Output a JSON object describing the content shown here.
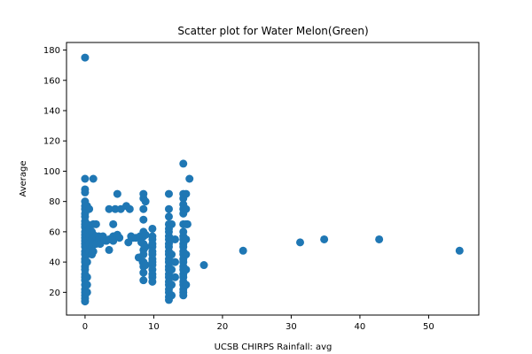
{
  "chart_data": {
    "type": "scatter",
    "title": "Scatter plot for Water Melon(Green)",
    "xlabel": "UCSB CHIRPS Rainfall: avg",
    "ylabel": "Average",
    "xlim": [
      -2.7,
      57.3
    ],
    "ylim": [
      5,
      185
    ],
    "xticks": [
      0,
      10,
      20,
      30,
      40,
      50
    ],
    "yticks": [
      20,
      40,
      60,
      80,
      100,
      120,
      140,
      160,
      180
    ],
    "grid": false,
    "legend": "none",
    "marker_color": "#1f77b4",
    "series": [
      {
        "points": [
          [
            0,
            175
          ],
          [
            0,
            95
          ],
          [
            0,
            88
          ],
          [
            0,
            86
          ],
          [
            0,
            80
          ],
          [
            0,
            77
          ],
          [
            0,
            75
          ],
          [
            0,
            72
          ],
          [
            0,
            70
          ],
          [
            0,
            67
          ],
          [
            0,
            65
          ],
          [
            0,
            63
          ],
          [
            0,
            60
          ],
          [
            0,
            58
          ],
          [
            0,
            56
          ],
          [
            0,
            54
          ],
          [
            0,
            52
          ],
          [
            0,
            50
          ],
          [
            0,
            47
          ],
          [
            0,
            45
          ],
          [
            0,
            42
          ],
          [
            0,
            40
          ],
          [
            0,
            37
          ],
          [
            0,
            35
          ],
          [
            0,
            32
          ],
          [
            0,
            30
          ],
          [
            0,
            28
          ],
          [
            0,
            25
          ],
          [
            0,
            22
          ],
          [
            0,
            20
          ],
          [
            0,
            18
          ],
          [
            0,
            16
          ],
          [
            0,
            14
          ],
          [
            0.3,
            77
          ],
          [
            0.3,
            65
          ],
          [
            0.3,
            60
          ],
          [
            0.3,
            55
          ],
          [
            0.3,
            50
          ],
          [
            0.3,
            45
          ],
          [
            0.3,
            40
          ],
          [
            0.3,
            30
          ],
          [
            0.3,
            25
          ],
          [
            0.3,
            20
          ],
          [
            0.6,
            75
          ],
          [
            0.6,
            62
          ],
          [
            0.6,
            57
          ],
          [
            0.6,
            52
          ],
          [
            0.6,
            47
          ],
          [
            1.2,
            95
          ],
          [
            1.0,
            60
          ],
          [
            1.0,
            55
          ],
          [
            1.0,
            50
          ],
          [
            1.0,
            45
          ],
          [
            1.2,
            65
          ],
          [
            1.2,
            58
          ],
          [
            1.2,
            52
          ],
          [
            1.2,
            47
          ],
          [
            1.6,
            65
          ],
          [
            1.6,
            57
          ],
          [
            1.6,
            52
          ],
          [
            2.0,
            57
          ],
          [
            2.0,
            55
          ],
          [
            2.2,
            52
          ],
          [
            2.6,
            57
          ],
          [
            2.8,
            55
          ],
          [
            3.1,
            54
          ],
          [
            3.5,
            75
          ],
          [
            3.5,
            55
          ],
          [
            3.5,
            48
          ],
          [
            4.1,
            65
          ],
          [
            4.1,
            57
          ],
          [
            4.1,
            54
          ],
          [
            4.4,
            75
          ],
          [
            4.7,
            85
          ],
          [
            4.7,
            58
          ],
          [
            5.0,
            56
          ],
          [
            5.2,
            75
          ],
          [
            6.0,
            77
          ],
          [
            6.3,
            53
          ],
          [
            6.5,
            75
          ],
          [
            6.7,
            57
          ],
          [
            7.0,
            56
          ],
          [
            7.4,
            56
          ],
          [
            7.8,
            43
          ],
          [
            8.0,
            57
          ],
          [
            8.2,
            53
          ],
          [
            8.4,
            40
          ],
          [
            8.5,
            85
          ],
          [
            8.5,
            82
          ],
          [
            8.5,
            75
          ],
          [
            8.5,
            68
          ],
          [
            8.5,
            60
          ],
          [
            8.5,
            57
          ],
          [
            8.5,
            52
          ],
          [
            8.5,
            48
          ],
          [
            8.5,
            45
          ],
          [
            8.5,
            40
          ],
          [
            8.5,
            37
          ],
          [
            8.5,
            33
          ],
          [
            8.5,
            28
          ],
          [
            8.8,
            80
          ],
          [
            8.8,
            58
          ],
          [
            8.8,
            50
          ],
          [
            8.8,
            38
          ],
          [
            9.8,
            62
          ],
          [
            9.8,
            57
          ],
          [
            9.8,
            55
          ],
          [
            9.8,
            52
          ],
          [
            9.8,
            50
          ],
          [
            9.8,
            47
          ],
          [
            9.8,
            45
          ],
          [
            9.8,
            42
          ],
          [
            9.8,
            40
          ],
          [
            9.8,
            38
          ],
          [
            9.8,
            35
          ],
          [
            9.8,
            32
          ],
          [
            9.8,
            30
          ],
          [
            9.8,
            27
          ],
          [
            12.2,
            85
          ],
          [
            12.2,
            75
          ],
          [
            12.2,
            70
          ],
          [
            12.2,
            65
          ],
          [
            12.2,
            62
          ],
          [
            12.2,
            60
          ],
          [
            12.2,
            57
          ],
          [
            12.2,
            55
          ],
          [
            12.2,
            52
          ],
          [
            12.2,
            50
          ],
          [
            12.2,
            47
          ],
          [
            12.2,
            45
          ],
          [
            12.2,
            42
          ],
          [
            12.2,
            40
          ],
          [
            12.2,
            37
          ],
          [
            12.2,
            35
          ],
          [
            12.2,
            32
          ],
          [
            12.2,
            30
          ],
          [
            12.2,
            27
          ],
          [
            12.2,
            25
          ],
          [
            12.2,
            22
          ],
          [
            12.2,
            20
          ],
          [
            12.2,
            17
          ],
          [
            12.2,
            15
          ],
          [
            12.6,
            65
          ],
          [
            12.6,
            55
          ],
          [
            12.6,
            45
          ],
          [
            12.6,
            35
          ],
          [
            12.6,
            25
          ],
          [
            12.6,
            18
          ],
          [
            13.1,
            55
          ],
          [
            13.1,
            40
          ],
          [
            13.1,
            30
          ],
          [
            14.3,
            105
          ],
          [
            14.3,
            85
          ],
          [
            14.3,
            82
          ],
          [
            14.3,
            78
          ],
          [
            14.3,
            75
          ],
          [
            14.3,
            72
          ],
          [
            14.3,
            65
          ],
          [
            14.3,
            60
          ],
          [
            14.3,
            57
          ],
          [
            14.3,
            55
          ],
          [
            14.3,
            52
          ],
          [
            14.3,
            50
          ],
          [
            14.3,
            47
          ],
          [
            14.3,
            45
          ],
          [
            14.3,
            42
          ],
          [
            14.3,
            40
          ],
          [
            14.3,
            37
          ],
          [
            14.3,
            35
          ],
          [
            14.3,
            32
          ],
          [
            14.3,
            30
          ],
          [
            14.3,
            27
          ],
          [
            14.3,
            25
          ],
          [
            14.3,
            22
          ],
          [
            14.3,
            20
          ],
          [
            14.3,
            18
          ],
          [
            14.7,
            85
          ],
          [
            14.7,
            75
          ],
          [
            14.7,
            65
          ],
          [
            14.7,
            55
          ],
          [
            14.7,
            45
          ],
          [
            14.7,
            35
          ],
          [
            14.7,
            25
          ],
          [
            15.2,
            95
          ],
          [
            14.9,
            65
          ],
          [
            17.3,
            38
          ],
          [
            23.0,
            47.5
          ],
          [
            31.3,
            53
          ],
          [
            34.8,
            55
          ],
          [
            42.8,
            55
          ],
          [
            54.5,
            47.5
          ]
        ]
      }
    ]
  }
}
